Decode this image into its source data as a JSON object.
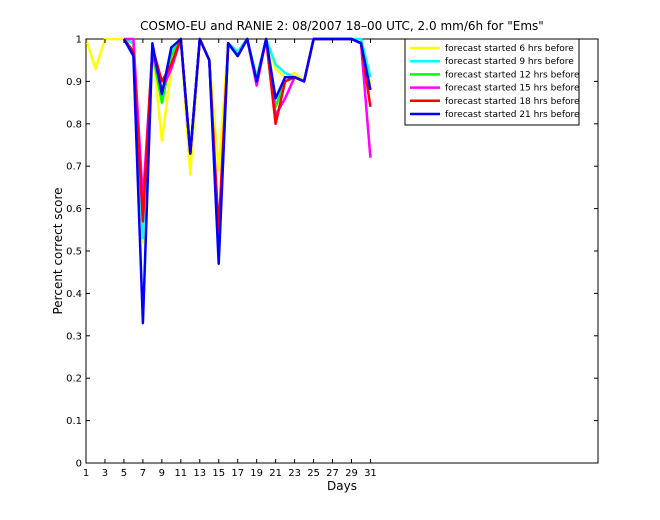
{
  "chart_data": {
    "type": "line",
    "title": "COSMO-EU and RANIE 2: 08/2007 18–00 UTC, 2.0 mm/6h for \"Ems\"",
    "xlabel": "Days",
    "ylabel": "Percent correct score",
    "xlim": [
      1,
      55
    ],
    "ylim": [
      0,
      1
    ],
    "xticks": [
      1,
      3,
      5,
      7,
      9,
      11,
      13,
      15,
      17,
      19,
      21,
      23,
      25,
      27,
      29,
      31
    ],
    "yticks": [
      0,
      0.1,
      0.2,
      0.3,
      0.4,
      0.5,
      0.6,
      0.7,
      0.8,
      0.9,
      1
    ],
    "yticklabels": [
      "0",
      "0.1",
      "0.2",
      "0.3",
      "0.4",
      "0.5",
      "0.6",
      "0.7",
      "0.8",
      "0.9",
      "1"
    ],
    "grid": false,
    "legend_position": "top-right",
    "series": [
      {
        "name": "forecast started 6 hrs before",
        "color": "#ffff00",
        "points": [
          [
            1,
            1
          ],
          [
            2,
            0.93
          ],
          [
            3,
            1
          ],
          [
            5,
            1
          ],
          [
            6,
            0.99
          ],
          [
            7,
            0.52
          ],
          [
            8,
            0.98
          ],
          [
            9,
            0.76
          ],
          [
            10,
            0.93
          ],
          [
            11,
            1
          ],
          [
            12,
            0.68
          ],
          [
            13,
            1
          ],
          [
            14,
            0.95
          ],
          [
            15,
            0.69
          ],
          [
            16,
            0.99
          ],
          [
            17,
            0.97
          ],
          [
            18,
            1
          ],
          [
            19,
            0.9
          ],
          [
            20,
            1
          ],
          [
            21,
            0.93
          ],
          [
            22,
            0.91
          ],
          [
            23,
            0.92
          ],
          [
            24,
            0.9
          ],
          [
            25,
            1
          ],
          [
            27,
            1
          ],
          [
            29,
            1
          ],
          [
            30,
            0.99
          ],
          [
            31,
            0.89
          ]
        ]
      },
      {
        "name": "forecast started 9 hrs before",
        "color": "#00ffff",
        "points": [
          [
            5,
            1
          ],
          [
            6,
            0.99
          ],
          [
            7,
            0.53
          ],
          [
            8,
            0.98
          ],
          [
            9,
            0.87
          ],
          [
            10,
            0.97
          ],
          [
            11,
            1
          ],
          [
            12,
            0.73
          ],
          [
            13,
            1
          ],
          [
            14,
            0.95
          ],
          [
            15,
            0.49
          ],
          [
            16,
            0.99
          ],
          [
            17,
            0.97
          ],
          [
            18,
            1
          ],
          [
            19,
            0.91
          ],
          [
            20,
            1
          ],
          [
            21,
            0.94
          ],
          [
            22,
            0.92
          ],
          [
            23,
            0.91
          ],
          [
            24,
            0.9
          ],
          [
            25,
            1
          ],
          [
            27,
            1
          ],
          [
            29,
            1
          ],
          [
            30,
            1
          ],
          [
            31,
            0.91
          ]
        ]
      },
      {
        "name": "forecast started 12 hrs before",
        "color": "#00ff00",
        "points": [
          [
            5,
            1
          ],
          [
            6,
            0.97
          ],
          [
            7,
            0.6
          ],
          [
            8,
            0.97
          ],
          [
            9,
            0.85
          ],
          [
            10,
            0.96
          ],
          [
            11,
            1
          ],
          [
            12,
            0.73
          ],
          [
            13,
            1
          ],
          [
            14,
            0.95
          ],
          [
            15,
            0.52
          ],
          [
            16,
            0.99
          ],
          [
            17,
            0.96
          ],
          [
            18,
            1
          ],
          [
            19,
            0.9
          ],
          [
            20,
            1
          ],
          [
            21,
            0.84
          ],
          [
            22,
            0.9
          ],
          [
            23,
            0.91
          ],
          [
            24,
            0.9
          ],
          [
            25,
            1
          ],
          [
            27,
            1
          ],
          [
            29,
            1
          ],
          [
            30,
            0.99
          ],
          [
            31,
            0.88
          ]
        ]
      },
      {
        "name": "forecast started 15 hrs before",
        "color": "#ff00ff",
        "points": [
          [
            5,
            1
          ],
          [
            6,
            1
          ],
          [
            7,
            0.62
          ],
          [
            8,
            0.97
          ],
          [
            9,
            0.88
          ],
          [
            10,
            0.93
          ],
          [
            11,
            1
          ],
          [
            12,
            0.73
          ],
          [
            13,
            1
          ],
          [
            14,
            0.95
          ],
          [
            15,
            0.5
          ],
          [
            16,
            0.99
          ],
          [
            17,
            0.96
          ],
          [
            18,
            1
          ],
          [
            19,
            0.89
          ],
          [
            20,
            1
          ],
          [
            21,
            0.82
          ],
          [
            22,
            0.86
          ],
          [
            23,
            0.91
          ],
          [
            24,
            0.9
          ],
          [
            25,
            1
          ],
          [
            27,
            1
          ],
          [
            29,
            1
          ],
          [
            30,
            0.99
          ],
          [
            31,
            0.72
          ]
        ]
      },
      {
        "name": "forecast started 18 hrs before",
        "color": "#ff0000",
        "points": [
          [
            5,
            1
          ],
          [
            6,
            0.97
          ],
          [
            7,
            0.57
          ],
          [
            8,
            0.98
          ],
          [
            9,
            0.9
          ],
          [
            10,
            0.94
          ],
          [
            11,
            1
          ],
          [
            12,
            0.73
          ],
          [
            13,
            1
          ],
          [
            14,
            0.95
          ],
          [
            15,
            0.55
          ],
          [
            16,
            0.99
          ],
          [
            17,
            0.96
          ],
          [
            18,
            1
          ],
          [
            19,
            0.9
          ],
          [
            20,
            1
          ],
          [
            21,
            0.8
          ],
          [
            22,
            0.9
          ],
          [
            23,
            0.91
          ],
          [
            24,
            0.9
          ],
          [
            25,
            1
          ],
          [
            27,
            1
          ],
          [
            29,
            1
          ],
          [
            30,
            0.99
          ],
          [
            31,
            0.84
          ]
        ]
      },
      {
        "name": "forecast started 21 hrs before",
        "color": "#0000ff",
        "points": [
          [
            5,
            1
          ],
          [
            6,
            0.96
          ],
          [
            7,
            0.33
          ],
          [
            8,
            0.99
          ],
          [
            9,
            0.87
          ],
          [
            10,
            0.98
          ],
          [
            11,
            1
          ],
          [
            12,
            0.73
          ],
          [
            13,
            1
          ],
          [
            14,
            0.95
          ],
          [
            15,
            0.47
          ],
          [
            16,
            0.99
          ],
          [
            17,
            0.96
          ],
          [
            18,
            1
          ],
          [
            19,
            0.9
          ],
          [
            20,
            1
          ],
          [
            21,
            0.86
          ],
          [
            22,
            0.91
          ],
          [
            23,
            0.91
          ],
          [
            24,
            0.9
          ],
          [
            25,
            1
          ],
          [
            27,
            1
          ],
          [
            29,
            1
          ],
          [
            30,
            0.99
          ],
          [
            31,
            0.88
          ]
        ]
      }
    ]
  }
}
